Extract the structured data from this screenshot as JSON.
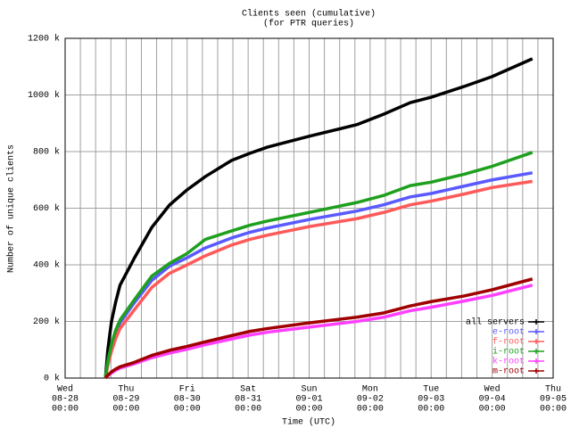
{
  "chart_data": {
    "type": "line",
    "title": [
      "Clients seen (cumulative)",
      "(for PTR queries)"
    ],
    "xlabel": "Time (UTC)",
    "ylabel": "Number of unique clients",
    "xlim": [
      0,
      8
    ],
    "xticks": [
      {
        "value": 0,
        "label": [
          "Wed",
          "08-28",
          "00:00"
        ]
      },
      {
        "value": 1,
        "label": [
          "Thu",
          "08-29",
          "00:00"
        ]
      },
      {
        "value": 2,
        "label": [
          "Fri",
          "08-30",
          "00:00"
        ]
      },
      {
        "value": 3,
        "label": [
          "Sat",
          "08-31",
          "00:00"
        ]
      },
      {
        "value": 4,
        "label": [
          "Sun",
          "09-01",
          "00:00"
        ]
      },
      {
        "value": 5,
        "label": [
          "Mon",
          "09-02",
          "00:00"
        ]
      },
      {
        "value": 6,
        "label": [
          "Tue",
          "09-03",
          "00:00"
        ]
      },
      {
        "value": 7,
        "label": [
          "Wed",
          "09-04",
          "00:00"
        ]
      },
      {
        "value": 8,
        "label": [
          "Thu",
          "09-05",
          "00:00"
        ]
      }
    ],
    "x_minor_per_tick": 4,
    "ylim": [
      0,
      1200
    ],
    "yticks": [
      {
        "value": 0,
        "label": "0 k"
      },
      {
        "value": 200,
        "label": "200 k"
      },
      {
        "value": 400,
        "label": "400 k"
      },
      {
        "value": 600,
        "label": "600 k"
      },
      {
        "value": 800,
        "label": "800 k"
      },
      {
        "value": 1000,
        "label": "1000 k"
      },
      {
        "value": 1200,
        "label": "1200 k"
      }
    ],
    "grid": true,
    "legend": "lower right",
    "x": [
      0.66,
      0.7,
      0.76,
      0.83,
      0.9,
      1.13,
      1.42,
      1.71,
      2.0,
      2.3,
      2.73,
      3.03,
      3.32,
      4.0,
      4.78,
      5.22,
      5.66,
      6.0,
      6.54,
      7.0,
      7.66
    ],
    "series": [
      {
        "name": "all servers",
        "color": "#000000",
        "values": [
          0,
          100,
          200,
          270,
          328,
          422,
          532,
          611,
          665,
          712,
          769,
          794,
          816,
          854,
          895,
          932,
          973,
          992,
          1030,
          1065,
          1128
        ]
      },
      {
        "name": "e-root",
        "color": "#5a5aff",
        "values": [
          0,
          55,
          110,
          160,
          195,
          265,
          345,
          395,
          425,
          460,
          495,
          515,
          530,
          560,
          590,
          612,
          640,
          652,
          678,
          700,
          725
        ]
      },
      {
        "name": "f-root",
        "color": "#ff5a5a",
        "values": [
          0,
          45,
          95,
          140,
          175,
          240,
          320,
          370,
          400,
          432,
          470,
          490,
          505,
          535,
          563,
          585,
          612,
          625,
          650,
          673,
          695
        ]
      },
      {
        "name": "i-root",
        "color": "#1ea01e",
        "values": [
          0,
          60,
          120,
          170,
          205,
          275,
          360,
          405,
          440,
          490,
          520,
          540,
          555,
          585,
          620,
          645,
          680,
          692,
          720,
          748,
          797
        ]
      },
      {
        "name": "k-root",
        "color": "#ff40ff",
        "values": [
          0,
          8,
          18,
          28,
          35,
          50,
          72,
          88,
          102,
          118,
          138,
          152,
          162,
          180,
          200,
          215,
          238,
          250,
          272,
          292,
          328
        ]
      },
      {
        "name": "m-root",
        "color": "#a00000",
        "values": [
          0,
          10,
          22,
          32,
          40,
          55,
          80,
          98,
          112,
          128,
          150,
          165,
          175,
          195,
          215,
          230,
          255,
          270,
          290,
          312,
          350
        ]
      }
    ]
  }
}
